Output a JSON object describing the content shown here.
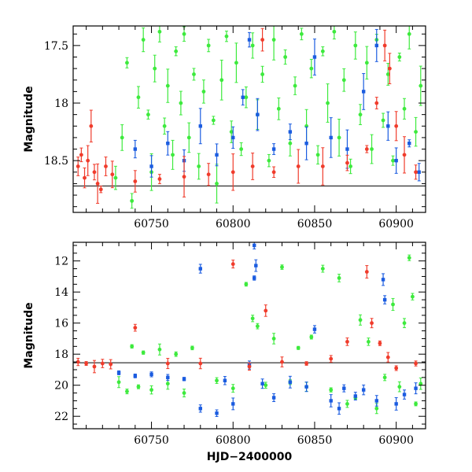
{
  "chart_data": [
    {
      "type": "scatter",
      "panel": "top",
      "title": "",
      "xlabel": "",
      "ylabel": "Magnitude",
      "xlim": [
        60702,
        60918
      ],
      "ylim": [
        18.95,
        17.33
      ],
      "y_inverted": true,
      "x_ticks": [
        60750,
        60800,
        60850,
        60900
      ],
      "y_ticks": [
        17.5,
        18,
        18.5
      ],
      "reference_line_y": 18.72,
      "grid": false,
      "legend": "none",
      "series": [
        {
          "color": "#3dea3d",
          "points": [
            [
              60728,
              18.65
            ],
            [
              60732,
              18.3
            ],
            [
              60735,
              17.65
            ],
            [
              60738,
              18.85
            ],
            [
              60742,
              17.95
            ],
            [
              60745,
              17.45
            ],
            [
              60748,
              18.1
            ],
            [
              60750,
              18.6
            ],
            [
              60752,
              17.7
            ],
            [
              60755,
              17.38
            ],
            [
              60758,
              18.2
            ],
            [
              60760,
              17.85
            ],
            [
              60763,
              18.45
            ],
            [
              60765,
              17.55
            ],
            [
              60768,
              18.0
            ],
            [
              60770,
              17.4
            ],
            [
              60773,
              18.3
            ],
            [
              60776,
              17.75
            ],
            [
              60779,
              18.55
            ],
            [
              60782,
              17.9
            ],
            [
              60785,
              17.5
            ],
            [
              60788,
              18.15
            ],
            [
              60790,
              18.7
            ],
            [
              60793,
              17.8
            ],
            [
              60796,
              17.42
            ],
            [
              60799,
              18.25
            ],
            [
              60802,
              17.65
            ],
            [
              60805,
              18.4
            ],
            [
              60808,
              17.95
            ],
            [
              60812,
              17.5
            ],
            [
              60815,
              18.1
            ],
            [
              60818,
              17.75
            ],
            [
              60822,
              18.5
            ],
            [
              60825,
              17.45
            ],
            [
              60828,
              18.05
            ],
            [
              60832,
              17.6
            ],
            [
              60835,
              18.35
            ],
            [
              60838,
              17.85
            ],
            [
              60842,
              17.4
            ],
            [
              60845,
              18.2
            ],
            [
              60848,
              17.7
            ],
            [
              60852,
              18.45
            ],
            [
              60855,
              17.55
            ],
            [
              60858,
              18.0
            ],
            [
              60862,
              17.38
            ],
            [
              60865,
              18.3
            ],
            [
              60868,
              17.8
            ],
            [
              60872,
              18.55
            ],
            [
              60875,
              17.5
            ],
            [
              60878,
              18.1
            ],
            [
              60882,
              17.65
            ],
            [
              60885,
              18.4
            ],
            [
              60888,
              17.45
            ],
            [
              60892,
              18.15
            ],
            [
              60895,
              17.75
            ],
            [
              60898,
              18.5
            ],
            [
              60902,
              17.6
            ],
            [
              60905,
              18.05
            ],
            [
              60908,
              17.4
            ],
            [
              60912,
              18.25
            ],
            [
              60915,
              17.85
            ]
          ]
        },
        {
          "color": "#1b5ce0",
          "points": [
            [
              60740,
              18.4
            ],
            [
              60750,
              18.55
            ],
            [
              60760,
              18.35
            ],
            [
              60770,
              18.5
            ],
            [
              60780,
              18.2
            ],
            [
              60790,
              18.45
            ],
            [
              60800,
              18.3
            ],
            [
              60806,
              17.95
            ],
            [
              60810,
              17.45
            ],
            [
              60815,
              18.1
            ],
            [
              60825,
              18.4
            ],
            [
              60835,
              18.25
            ],
            [
              60845,
              18.35
            ],
            [
              60850,
              17.6
            ],
            [
              60860,
              18.3
            ],
            [
              60870,
              18.4
            ],
            [
              60880,
              17.9
            ],
            [
              60888,
              17.5
            ],
            [
              60895,
              18.2
            ],
            [
              60900,
              18.5
            ],
            [
              60908,
              18.35
            ],
            [
              60914,
              18.6
            ]
          ]
        },
        {
          "color": "#f03c2c",
          "points": [
            [
              60705,
              18.55
            ],
            [
              60707,
              18.45
            ],
            [
              60709,
              18.65
            ],
            [
              60711,
              18.5
            ],
            [
              60713,
              18.2
            ],
            [
              60715,
              18.6
            ],
            [
              60717,
              18.7
            ],
            [
              60719,
              18.75
            ],
            [
              60722,
              18.55
            ],
            [
              60726,
              18.62
            ],
            [
              60740,
              18.68
            ],
            [
              60755,
              18.66
            ],
            [
              60770,
              18.64
            ],
            [
              60785,
              18.62
            ],
            [
              60800,
              18.6
            ],
            [
              60812,
              18.55
            ],
            [
              60818,
              17.45
            ],
            [
              60825,
              18.6
            ],
            [
              60840,
              18.55
            ],
            [
              60855,
              18.55
            ],
            [
              60870,
              18.52
            ],
            [
              60882,
              18.4
            ],
            [
              60888,
              18.0
            ],
            [
              60893,
              17.5
            ],
            [
              60896,
              17.7
            ],
            [
              60900,
              18.2
            ],
            [
              60905,
              18.45
            ],
            [
              60912,
              18.6
            ]
          ]
        }
      ]
    },
    {
      "type": "scatter",
      "panel": "bottom",
      "title": "",
      "xlabel": "HJD−2400000",
      "ylabel": "Magnitude",
      "xlim": [
        60702,
        60918
      ],
      "ylim": [
        22.8,
        10.8
      ],
      "y_inverted": true,
      "x_ticks": [
        60750,
        60800,
        60850,
        60900
      ],
      "y_ticks": [
        12,
        14,
        16,
        18,
        20,
        22
      ],
      "reference_line_y": 18.55,
      "grid": false,
      "legend": "none",
      "series": [
        {
          "color": "#3dea3d",
          "points": [
            [
              60730,
              19.8
            ],
            [
              60735,
              20.4
            ],
            [
              60738,
              17.5
            ],
            [
              60742,
              20.1
            ],
            [
              60745,
              17.9
            ],
            [
              60750,
              20.3
            ],
            [
              60755,
              17.7
            ],
            [
              60760,
              19.9
            ],
            [
              60765,
              18.0
            ],
            [
              60770,
              20.5
            ],
            [
              60775,
              17.6
            ],
            [
              60790,
              19.7
            ],
            [
              60800,
              20.2
            ],
            [
              60808,
              13.5
            ],
            [
              60812,
              15.7
            ],
            [
              60815,
              16.2
            ],
            [
              60820,
              20.0
            ],
            [
              60825,
              17.0
            ],
            [
              60830,
              12.4
            ],
            [
              60835,
              19.8
            ],
            [
              60840,
              17.6
            ],
            [
              60845,
              20.1
            ],
            [
              60848,
              16.9
            ],
            [
              60855,
              12.5
            ],
            [
              60860,
              20.3
            ],
            [
              60865,
              13.1
            ],
            [
              60870,
              21.2
            ],
            [
              60875,
              20.8
            ],
            [
              60878,
              15.8
            ],
            [
              60883,
              17.2
            ],
            [
              60888,
              21.5
            ],
            [
              60893,
              19.5
            ],
            [
              60898,
              14.8
            ],
            [
              60902,
              20.1
            ],
            [
              60905,
              16.0
            ],
            [
              60908,
              11.8
            ],
            [
              60910,
              14.3
            ],
            [
              60912,
              21.2
            ],
            [
              60915,
              19.9
            ]
          ]
        },
        {
          "color": "#1b5ce0",
          "points": [
            [
              60730,
              19.2
            ],
            [
              60740,
              19.4
            ],
            [
              60750,
              19.3
            ],
            [
              60760,
              19.5
            ],
            [
              60770,
              19.6
            ],
            [
              60780,
              12.5
            ],
            [
              60780,
              21.5
            ],
            [
              60790,
              21.8
            ],
            [
              60795,
              19.7
            ],
            [
              60800,
              21.2
            ],
            [
              60810,
              18.7
            ],
            [
              60813,
              11.0
            ],
            [
              60813,
              13.1
            ],
            [
              60814,
              12.3
            ],
            [
              60818,
              19.9
            ],
            [
              60825,
              20.8
            ],
            [
              60835,
              19.8
            ],
            [
              60845,
              20.1
            ],
            [
              60850,
              16.4
            ],
            [
              60860,
              21.0
            ],
            [
              60865,
              21.5
            ],
            [
              60868,
              20.2
            ],
            [
              60875,
              20.7
            ],
            [
              60880,
              20.3
            ],
            [
              60888,
              21.0
            ],
            [
              60892,
              13.2
            ],
            [
              60893,
              14.5
            ],
            [
              60900,
              21.2
            ],
            [
              60905,
              20.6
            ],
            [
              60912,
              20.2
            ]
          ]
        },
        {
          "color": "#f03c2c",
          "points": [
            [
              60705,
              18.5
            ],
            [
              60710,
              18.6
            ],
            [
              60715,
              18.8
            ],
            [
              60720,
              18.6
            ],
            [
              60725,
              18.65
            ],
            [
              60740,
              16.3
            ],
            [
              60760,
              18.6
            ],
            [
              60780,
              18.6
            ],
            [
              60800,
              12.2
            ],
            [
              60810,
              18.8
            ],
            [
              60820,
              15.2
            ],
            [
              60830,
              18.5
            ],
            [
              60845,
              18.6
            ],
            [
              60860,
              18.3
            ],
            [
              60870,
              17.2
            ],
            [
              60882,
              12.7
            ],
            [
              60885,
              16.0
            ],
            [
              60890,
              17.3
            ],
            [
              60895,
              18.2
            ],
            [
              60900,
              18.9
            ],
            [
              60912,
              18.6
            ]
          ]
        }
      ]
    }
  ]
}
